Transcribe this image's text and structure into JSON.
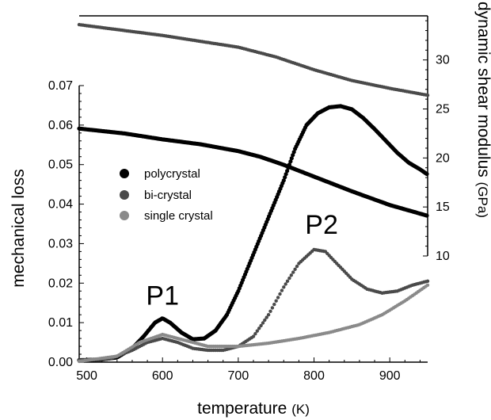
{
  "chart_data": {
    "type": "scatter",
    "title": "",
    "x_axis": {
      "label": "temperature",
      "unit": "(K)",
      "lim": [
        490,
        950
      ],
      "ticks": [
        500,
        600,
        700,
        800,
        900
      ]
    },
    "left_axis": {
      "label": "mechanical loss",
      "lim": [
        0,
        0.07
      ],
      "ticks": [
        0.0,
        0.01,
        0.02,
        0.03,
        0.04,
        0.05,
        0.06,
        0.07
      ],
      "tick_labels": [
        "0.00",
        "0.01",
        "0.02",
        "0.03",
        "0.04",
        "0.05",
        "0.06",
        "0.07"
      ]
    },
    "right_axis": {
      "label": "dynamic shear modulus",
      "unit": "(GPa)",
      "lim": [
        10,
        34.5
      ],
      "ticks": [
        10,
        15,
        20,
        25,
        30
      ]
    },
    "legend": {
      "placement": "center-left",
      "entries": [
        "polycrystal",
        "bi-crystal",
        "single crystal"
      ]
    },
    "annotations": [
      {
        "text": "P1",
        "x": 600,
        "y": 0.0145
      },
      {
        "text": "P2",
        "x": 810,
        "y": 0.0325
      }
    ],
    "series": [
      {
        "name": "polycrystal",
        "kind": "mechanical loss",
        "axis": "left",
        "color": "#000000",
        "points": [
          [
            490,
            0.0005
          ],
          [
            520,
            0.0007
          ],
          [
            540,
            0.0012
          ],
          [
            560,
            0.0035
          ],
          [
            575,
            0.0065
          ],
          [
            590,
            0.01
          ],
          [
            600,
            0.0111
          ],
          [
            610,
            0.01
          ],
          [
            625,
            0.0075
          ],
          [
            640,
            0.0058
          ],
          [
            655,
            0.006
          ],
          [
            670,
            0.008
          ],
          [
            685,
            0.012
          ],
          [
            700,
            0.018
          ],
          [
            715,
            0.025
          ],
          [
            730,
            0.032
          ],
          [
            745,
            0.039
          ],
          [
            760,
            0.046
          ],
          [
            775,
            0.054
          ],
          [
            790,
            0.06
          ],
          [
            805,
            0.063
          ],
          [
            820,
            0.0645
          ],
          [
            835,
            0.0648
          ],
          [
            850,
            0.064
          ],
          [
            865,
            0.0618
          ],
          [
            880,
            0.059
          ],
          [
            895,
            0.056
          ],
          [
            910,
            0.053
          ],
          [
            925,
            0.0505
          ],
          [
            940,
            0.0488
          ],
          [
            950,
            0.0475
          ]
        ]
      },
      {
        "name": "bi-crystal",
        "kind": "mechanical loss",
        "axis": "left",
        "color": "#4a4a4a",
        "points": [
          [
            490,
            0.0005
          ],
          [
            530,
            0.0008
          ],
          [
            560,
            0.003
          ],
          [
            580,
            0.005
          ],
          [
            600,
            0.006
          ],
          [
            620,
            0.005
          ],
          [
            640,
            0.0035
          ],
          [
            660,
            0.003
          ],
          [
            680,
            0.003
          ],
          [
            700,
            0.004
          ],
          [
            720,
            0.0065
          ],
          [
            740,
            0.012
          ],
          [
            760,
            0.019
          ],
          [
            780,
            0.025
          ],
          [
            800,
            0.0285
          ],
          [
            815,
            0.028
          ],
          [
            830,
            0.025
          ],
          [
            850,
            0.021
          ],
          [
            870,
            0.0185
          ],
          [
            890,
            0.0175
          ],
          [
            910,
            0.018
          ],
          [
            930,
            0.0195
          ],
          [
            950,
            0.0205
          ]
        ]
      },
      {
        "name": "single crystal",
        "kind": "mechanical loss",
        "axis": "left",
        "color": "#8a8a8a",
        "points": [
          [
            490,
            0.0002
          ],
          [
            540,
            0.0015
          ],
          [
            570,
            0.005
          ],
          [
            600,
            0.007
          ],
          [
            630,
            0.0055
          ],
          [
            660,
            0.004
          ],
          [
            700,
            0.004
          ],
          [
            740,
            0.0048
          ],
          [
            780,
            0.006
          ],
          [
            820,
            0.0075
          ],
          [
            860,
            0.0095
          ],
          [
            890,
            0.012
          ],
          [
            920,
            0.0155
          ],
          [
            950,
            0.0195
          ]
        ]
      },
      {
        "name": "polycrystal",
        "kind": "dynamic shear modulus",
        "axis": "right",
        "color": "#000000",
        "points": [
          [
            490,
            23.0
          ],
          [
            550,
            22.5
          ],
          [
            600,
            21.9
          ],
          [
            650,
            21.4
          ],
          [
            700,
            20.7
          ],
          [
            730,
            20.1
          ],
          [
            760,
            19.3
          ],
          [
            800,
            18.1
          ],
          [
            850,
            16.6
          ],
          [
            900,
            15.2
          ],
          [
            950,
            14.1
          ]
        ]
      },
      {
        "name": "bi-crystal",
        "kind": "dynamic shear modulus",
        "axis": "right",
        "color": "#4a4a4a",
        "points": [
          [
            490,
            33.6
          ],
          [
            550,
            33.0
          ],
          [
            600,
            32.5
          ],
          [
            650,
            31.9
          ],
          [
            700,
            31.3
          ],
          [
            750,
            30.3
          ],
          [
            800,
            29.0
          ],
          [
            850,
            27.9
          ],
          [
            900,
            27.1
          ],
          [
            950,
            26.4
          ]
        ]
      }
    ]
  }
}
